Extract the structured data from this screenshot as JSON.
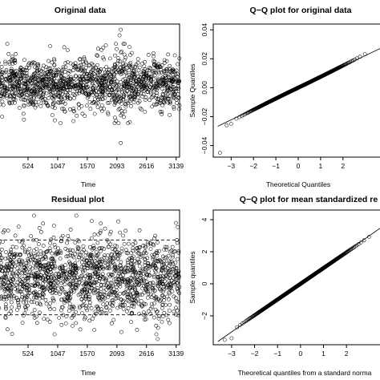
{
  "chart_data": [
    {
      "type": "scatter",
      "title": "Original data",
      "xlabel": "Time",
      "ylabel": "",
      "x_ticks": [
        "524",
        "1047",
        "1570",
        "2093",
        "2616",
        "3139"
      ],
      "y_ticks": [],
      "xlim": [
        0,
        3200
      ],
      "ylim": [
        -0.052,
        0.042
      ],
      "n_points": 3139,
      "series": [
        {
          "values_summary": "time series of returns fluctuating around 0.00 with spread of about ±0.012, volatility burst near t=2100-2300",
          "notable_points": [
            {
              "x": 2160,
              "y": 0.038
            },
            {
              "x": 2140,
              "y": 0.034
            },
            {
              "x": 2120,
              "y": 0.016
            },
            {
              "x": 2160,
              "y": -0.042
            }
          ]
        }
      ]
    },
    {
      "type": "scatter",
      "title": "Q−Q plot for original data",
      "xlabel": "Theoretical Quantiles",
      "ylabel": "Sample Quantiles",
      "x_ticks": [
        "−3",
        "−2",
        "−1",
        "0",
        "1",
        "2"
      ],
      "y_ticks": [
        "0.04",
        "0.02",
        "0.00",
        "−0.02",
        "−0.04"
      ],
      "xlim": [
        -3.8,
        3.8
      ],
      "ylim": [
        -0.048,
        0.044
      ],
      "reference_line": {
        "intercept": 0.0,
        "slope": 0.0074
      },
      "outliers": [
        {
          "x": -3.5,
          "y": -0.045
        },
        {
          "x": -3.2,
          "y": -0.026
        },
        {
          "x": -3.0,
          "y": -0.025
        }
      ]
    },
    {
      "type": "scatter",
      "title": "Residual plot",
      "xlabel": "Time",
      "ylabel": "",
      "x_ticks": [
        "524",
        "1047",
        "1570",
        "2093",
        "2616",
        "3139"
      ],
      "y_ticks": [],
      "xlim": [
        0,
        3200
      ],
      "ylim": [
        -3.6,
        3.6
      ],
      "bands": [
        2,
        -2
      ],
      "n_points": 3139
    },
    {
      "type": "scatter",
      "title": "Q−Q plot for mean standardized re",
      "xlabel": "Theoretical quantiles from a standard norma",
      "ylabel": "Sample quantiles",
      "x_ticks": [
        "−3",
        "−2",
        "−1",
        "0",
        "1",
        "2"
      ],
      "y_ticks": [
        "4",
        "2",
        "0",
        "−2"
      ],
      "xlim": [
        -3.8,
        3.6
      ],
      "ylim": [
        -3.8,
        4.6
      ],
      "reference_line": {
        "intercept": 0.0,
        "slope": 1.0
      },
      "outliers": [
        {
          "x": -3.3,
          "y": -3.5
        },
        {
          "x": -3.0,
          "y": -3.4
        }
      ]
    }
  ]
}
